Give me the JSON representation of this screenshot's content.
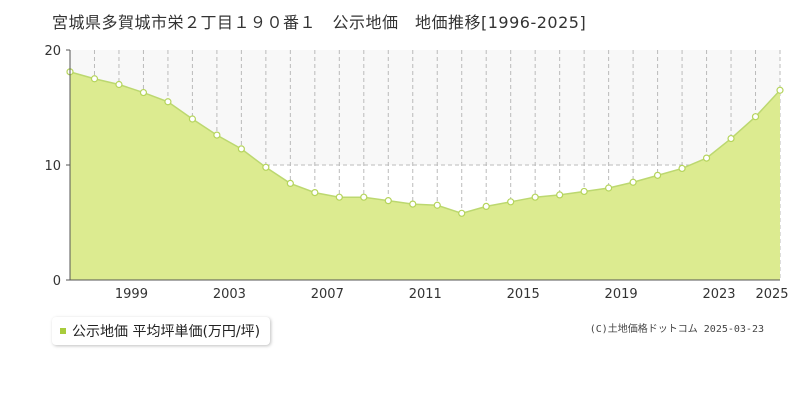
{
  "title": "宮城県多賀城市栄２丁目１９０番１　公示地価　地価推移[1996-2025]",
  "legend_label": "公示地価 平均坪単価(万円/坪)",
  "source": "(C)土地価格ドットコム 2025-03-23",
  "colors": {
    "area_fill": "#dceb90",
    "area_line": "#bcd870",
    "point_fill": "#ffffff",
    "point_stroke": "#b5d45c",
    "legend_marker": "#a8cc3c",
    "axis": "#555555",
    "grid": "#bbbbbb",
    "plot_bg": "#ffffff",
    "band_bg": "#f8f8f8"
  },
  "chart_data": {
    "type": "area",
    "x": [
      1996,
      1997,
      1998,
      1999,
      2000,
      2001,
      2002,
      2003,
      2004,
      2005,
      2006,
      2007,
      2008,
      2009,
      2010,
      2011,
      2012,
      2013,
      2014,
      2015,
      2016,
      2017,
      2018,
      2019,
      2020,
      2021,
      2022,
      2023,
      2024,
      2025
    ],
    "series": [
      {
        "name": "公示地価 平均坪単価(万円/坪)",
        "values": [
          18.1,
          17.5,
          17.0,
          16.3,
          15.5,
          14.0,
          12.6,
          11.4,
          9.8,
          8.4,
          7.6,
          7.2,
          7.2,
          6.9,
          6.6,
          6.5,
          5.8,
          6.4,
          6.8,
          7.2,
          7.4,
          7.7,
          8.0,
          8.5,
          9.1,
          9.7,
          10.6,
          12.3,
          14.2,
          16.5
        ]
      }
    ],
    "xtick_labels": [
      "1999",
      "2003",
      "2007",
      "2011",
      "2015",
      "2019",
      "2023",
      "2025"
    ],
    "ytick_labels": [
      "0",
      "10",
      "20"
    ],
    "ylim": [
      0,
      20
    ],
    "xlim": [
      1996,
      2025
    ],
    "grid": true
  }
}
